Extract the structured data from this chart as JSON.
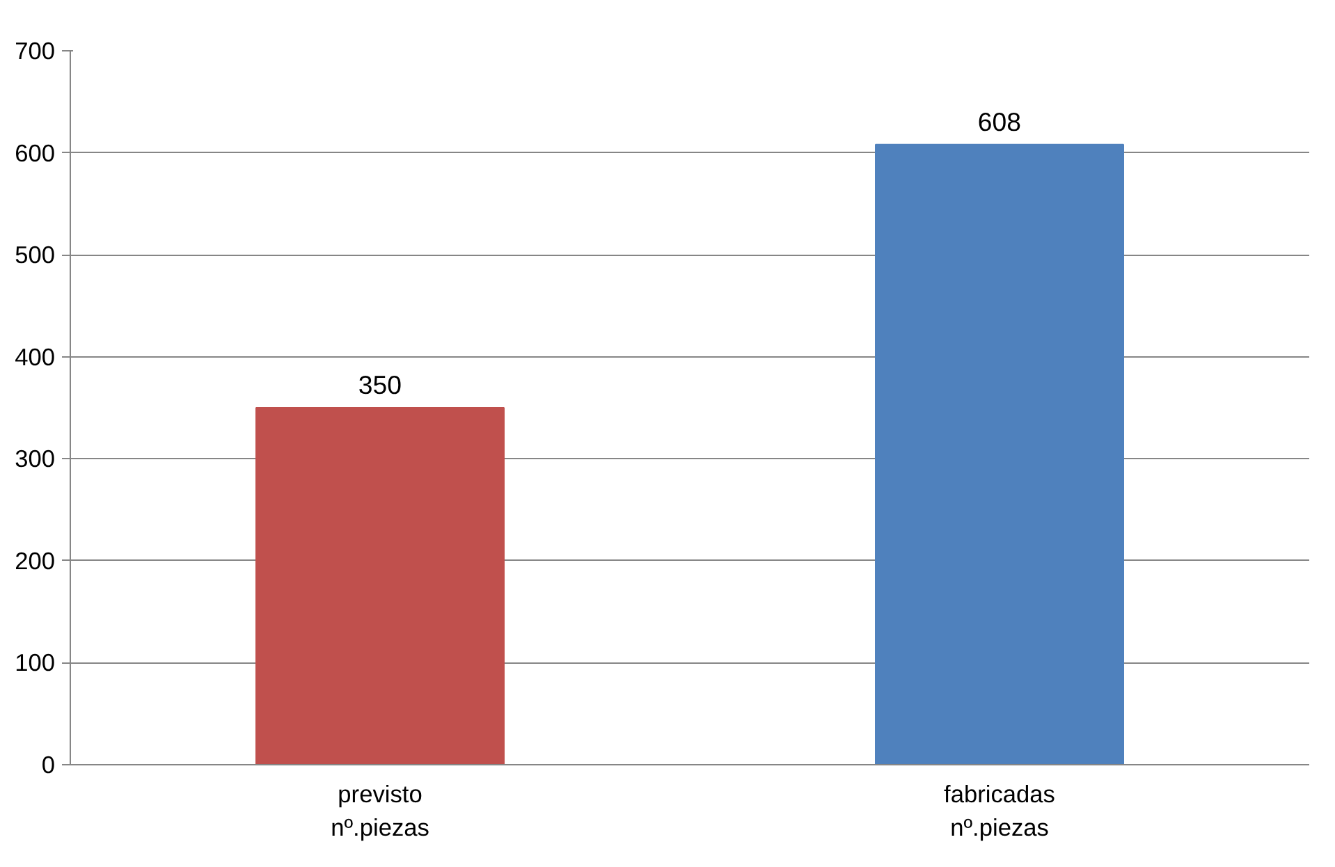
{
  "chart_data": {
    "type": "bar",
    "categories": [
      "previsto\nnº.piezas",
      "fabricadas\nnº.piezas"
    ],
    "values": [
      350,
      608
    ],
    "colors": [
      "#c0504d",
      "#4f81bd"
    ],
    "ylim": [
      0,
      700
    ],
    "yticks": [
      0,
      100,
      200,
      300,
      400,
      500,
      600,
      700
    ],
    "grid": "y",
    "data_labels": true
  }
}
